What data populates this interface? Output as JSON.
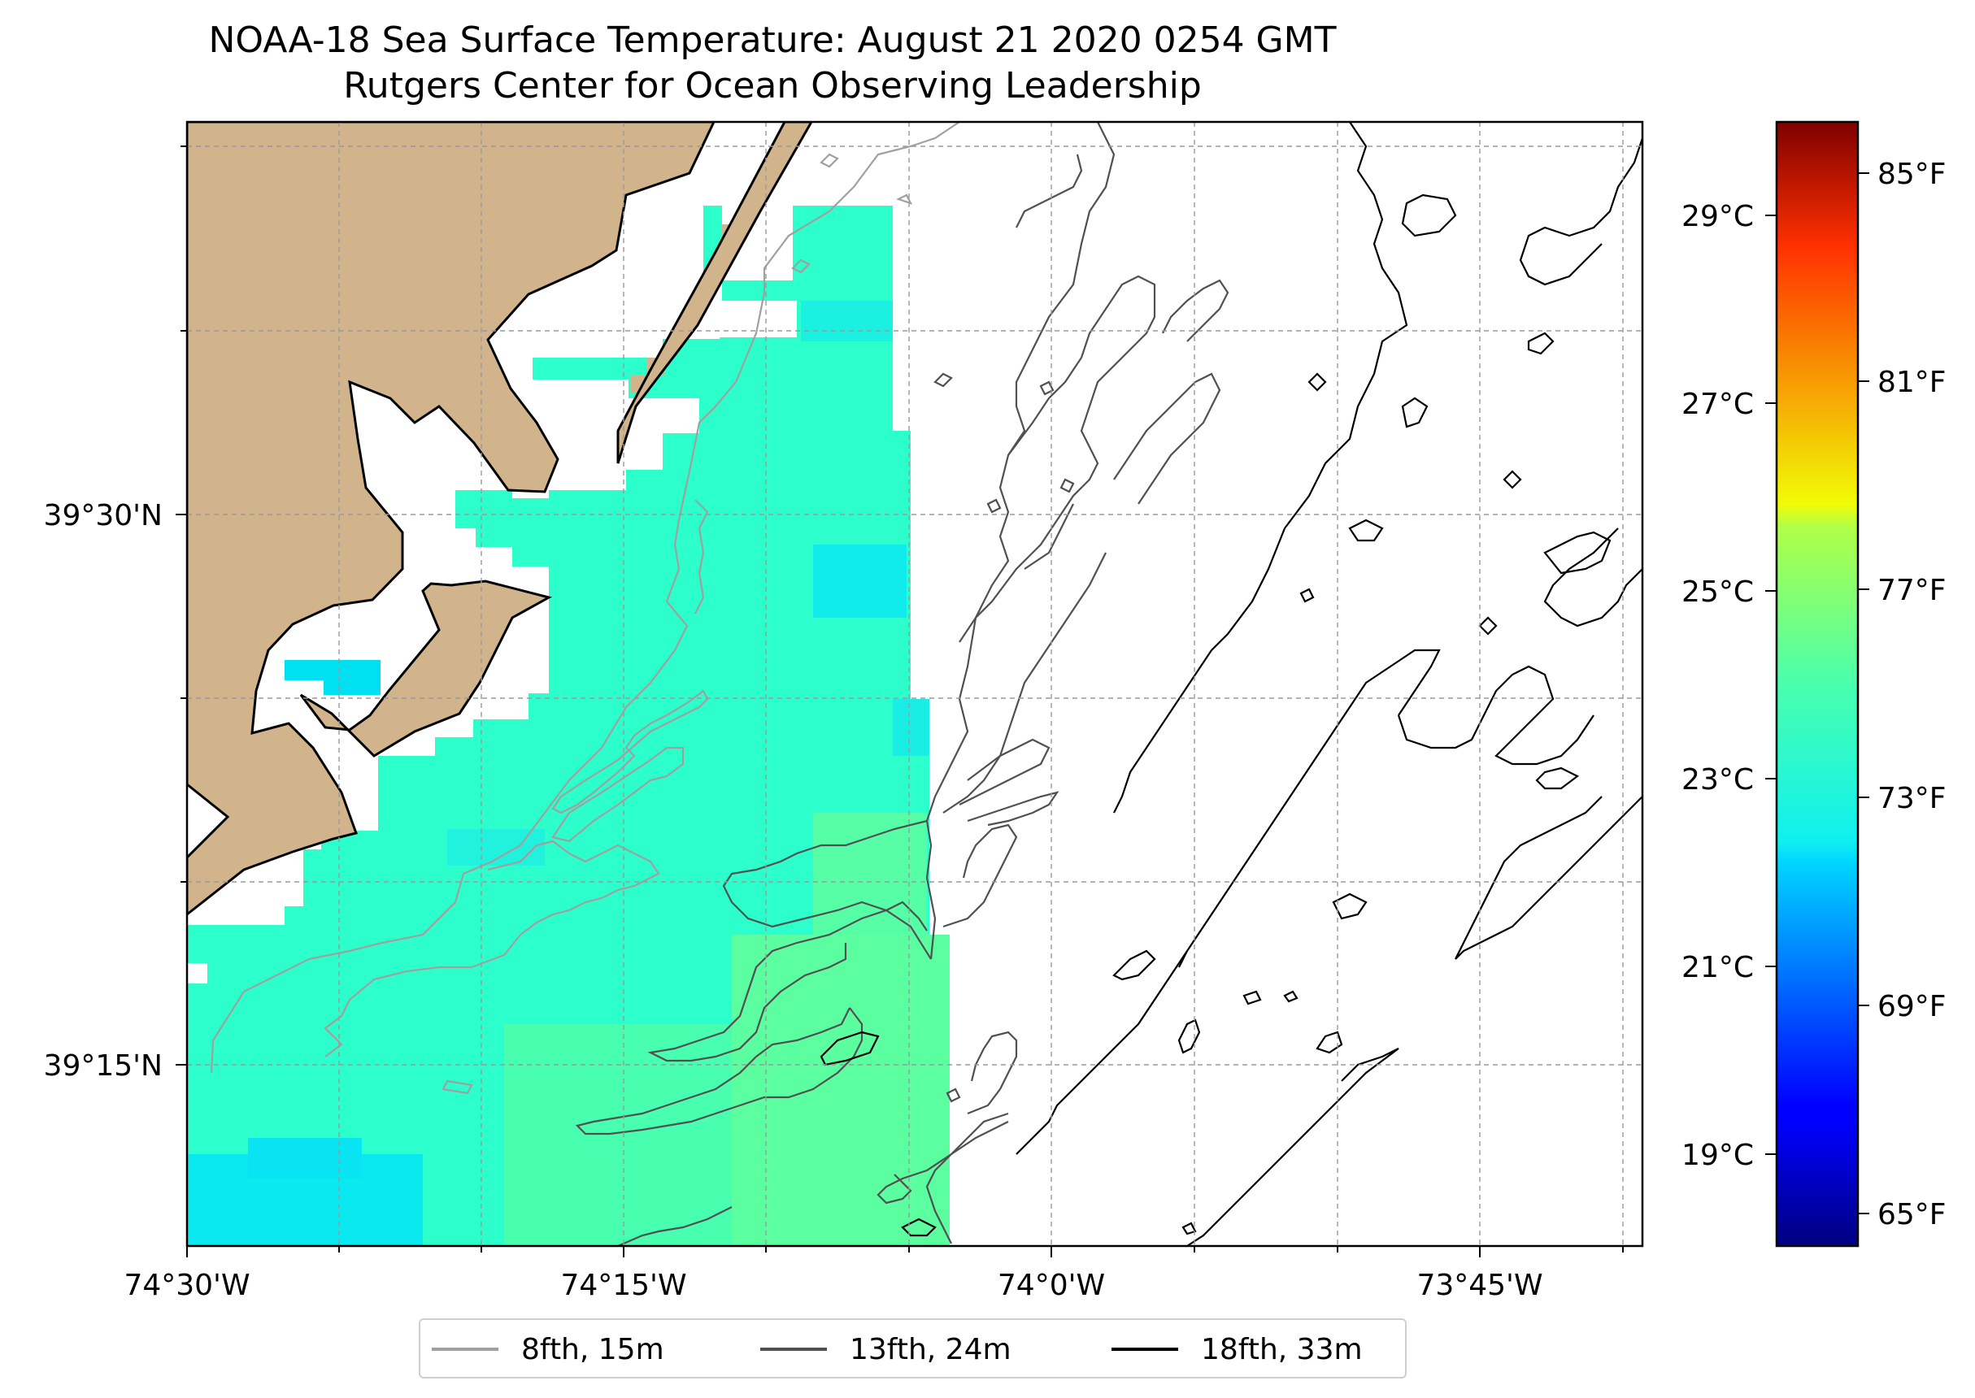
{
  "title": "NOAA-18 Sea Surface Temperature: August 21 2020 0254 GMT",
  "subtitle": "Rutgers Center for Ocean Observing Leadership",
  "map": {
    "lon_ticks": [
      "74°30'W",
      "74°15'W",
      "74°0'W",
      "73°45'W"
    ],
    "lat_ticks": [
      "39°30'N",
      "39°15'N"
    ],
    "land_color": "#d2b48c",
    "sea_color_cool": "#00e4f0",
    "sea_color_mid": "#2cffca",
    "sea_color_warm": "#5cffa0"
  },
  "colorbar": {
    "celsius_ticks": [
      "29°C",
      "27°C",
      "25°C",
      "23°C",
      "21°C",
      "19°C"
    ],
    "fahrenheit_ticks": [
      "85°F",
      "81°F",
      "77°F",
      "73°F",
      "69°F",
      "65°F"
    ],
    "colormap": "jet"
  },
  "legend": [
    {
      "label": "8fth, 15m",
      "color": "#a0a0a0"
    },
    {
      "label": "13fth, 24m",
      "color": "#505050"
    },
    {
      "label": "18fth, 33m",
      "color": "#000000"
    }
  ]
}
